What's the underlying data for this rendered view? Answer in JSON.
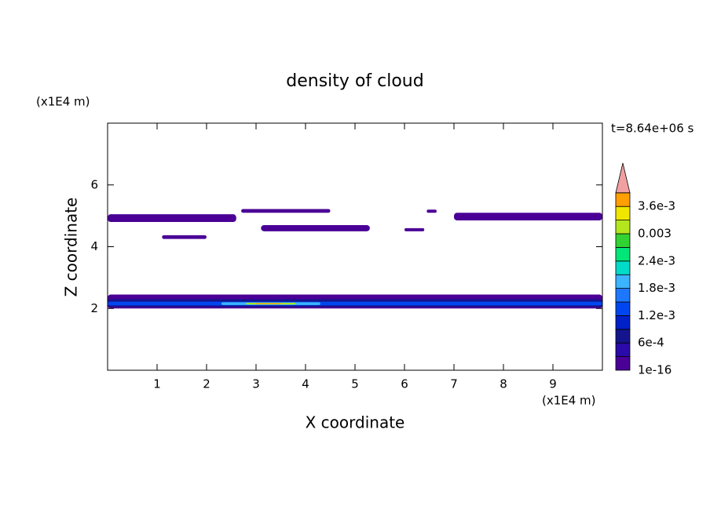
{
  "chart_data": {
    "type": "contour",
    "title": "density of cloud",
    "x_label": "X coordinate",
    "y_label": "Z coordinate",
    "x_unit": "(x1E4 m)",
    "y_unit": "(x1E4 m)",
    "time_label": "t=8.64e+06 s",
    "xlim": [
      0,
      10
    ],
    "ylim": [
      0,
      8
    ],
    "xticks": [
      1,
      2,
      3,
      4,
      5,
      6,
      7,
      8,
      9
    ],
    "yticks": [
      2,
      4,
      6
    ],
    "levels": [
      1e-16,
      0.0003,
      0.0006,
      0.0009,
      0.0012,
      0.0015,
      0.0018,
      0.0021,
      0.0024,
      0.0027,
      0.003,
      0.0033,
      0.0036,
      0.0039
    ],
    "colors": [
      "#4a0096",
      "#2a0aa8",
      "#14148c",
      "#0020c8",
      "#0046f0",
      "#1e78ff",
      "#3cb4ff",
      "#00dcc8",
      "#00e678",
      "#32d232",
      "#b4e61e",
      "#f0e600",
      "#ffa000"
    ],
    "extend_color": "#f0a0a0",
    "level_ticks": [
      {
        "value": 1e-16,
        "label": "1e-16"
      },
      {
        "value": 0.0006,
        "label": "6e-4"
      },
      {
        "value": 0.0012,
        "label": "1.2e-3"
      },
      {
        "value": 0.0018,
        "label": "1.8e-3"
      },
      {
        "value": 0.0024,
        "label": "2.4e-3"
      },
      {
        "value": 0.003,
        "label": "0.003"
      },
      {
        "value": 0.0036,
        "label": "3.6e-3"
      }
    ],
    "regions": [
      {
        "x": [
          0,
          2.6
        ],
        "z": [
          4.8,
          5.05
        ],
        "value": 1e-16
      },
      {
        "x": [
          1.1,
          2.0
        ],
        "z": [
          4.25,
          4.37
        ],
        "value": 1e-16
      },
      {
        "x": [
          2.7,
          4.5
        ],
        "z": [
          5.1,
          5.22
        ],
        "value": 1e-16
      },
      {
        "x": [
          3.1,
          5.3
        ],
        "z": [
          4.5,
          4.7
        ],
        "value": 1e-16
      },
      {
        "x": [
          6.0,
          6.4
        ],
        "z": [
          4.5,
          4.6
        ],
        "value": 1e-16
      },
      {
        "x": [
          6.45,
          6.65
        ],
        "z": [
          5.1,
          5.2
        ],
        "value": 1e-16
      },
      {
        "x": [
          7.0,
          10
        ],
        "z": [
          4.85,
          5.1
        ],
        "value": 1e-16
      },
      {
        "x": [
          0,
          10
        ],
        "z": [
          2.0,
          2.45
        ],
        "value": 1e-16
      },
      {
        "x": [
          0,
          10
        ],
        "z": [
          2.05,
          2.3
        ],
        "value": 0.0006
      },
      {
        "x": [
          0,
          10
        ],
        "z": [
          2.1,
          2.22
        ],
        "value": 0.0012
      },
      {
        "x": [
          2.3,
          4.3
        ],
        "z": [
          2.11,
          2.2
        ],
        "value": 0.0018
      },
      {
        "x": [
          2.8,
          3.8
        ],
        "z": [
          2.13,
          2.18
        ],
        "value": 0.003
      },
      {
        "x": [
          3.0,
          3.5
        ],
        "z": [
          2.14,
          2.17
        ],
        "value": 0.0036
      }
    ]
  }
}
